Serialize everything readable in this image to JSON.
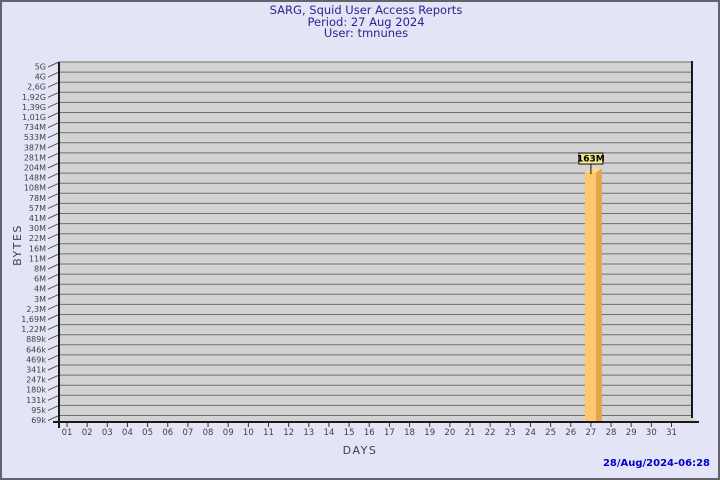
{
  "header": {
    "title": "SARG, Squid User Access Reports",
    "period": "Period: 27 Aug 2024",
    "user": "User: tmnunes"
  },
  "footer": {
    "timestamp": "28/Aug/2024-06:28"
  },
  "axis_labels": {
    "y": "BYTES",
    "x": "DAYS"
  },
  "colors": {
    "background": "#e4e4f7",
    "frame_border": "#63636d",
    "title": "#26268f",
    "timestamp": "#0000cd",
    "axis_text": "#3f3f3f",
    "tick_text": "#424242",
    "wall": "#d3d3d3",
    "gridline": "#6f6f6f",
    "axis": "#1a1a1a",
    "bar_front": "#ffc870",
    "bar_side": "#e1a74d",
    "bar_top": "#ffd58a",
    "value_box": "#f0e68c"
  },
  "chart_data": {
    "type": "bar",
    "title": "SARG, Squid User Access Reports",
    "subtitle": [
      "Period: 27 Aug 2024",
      "User: tmnunes"
    ],
    "xlabel": "DAYS",
    "ylabel": "BYTES",
    "y_scale": "log",
    "legend": "none",
    "grid": true,
    "x_categories": [
      "01",
      "02",
      "03",
      "04",
      "05",
      "06",
      "07",
      "08",
      "09",
      "10",
      "11",
      "12",
      "13",
      "14",
      "15",
      "16",
      "17",
      "18",
      "19",
      "20",
      "21",
      "22",
      "23",
      "24",
      "25",
      "26",
      "27",
      "28",
      "29",
      "30",
      "31"
    ],
    "values": [
      0,
      0,
      0,
      0,
      0,
      0,
      0,
      0,
      0,
      0,
      0,
      0,
      0,
      0,
      0,
      0,
      0,
      0,
      0,
      0,
      0,
      0,
      0,
      0,
      0,
      0,
      163000000,
      0,
      0,
      0,
      0
    ],
    "bars": [
      {
        "day": "27",
        "label": "163M",
        "bytes": 163000000
      }
    ],
    "y_tick_labels": [
      "5G",
      "4G",
      "2,6G",
      "1,92G",
      "1,39G",
      "1,01G",
      "734M",
      "533M",
      "387M",
      "281M",
      "204M",
      "148M",
      "108M",
      "78M",
      "57M",
      "41M",
      "30M",
      "22M",
      "16M",
      "11M",
      "8M",
      "6M",
      "4M",
      "3M",
      "2,3M",
      "1,69M",
      "1,22M",
      "889k",
      "646k",
      "469k",
      "341k",
      "247k",
      "180k",
      "131k",
      "95k",
      "69k"
    ],
    "y_tick_bytes": [
      5000000000,
      4000000000,
      2600000000,
      1920000000,
      1390000000,
      1010000000,
      734000000,
      533000000,
      387000000,
      281000000,
      204000000,
      148000000,
      108000000,
      78000000,
      57000000,
      41000000,
      30000000,
      22000000,
      16000000,
      11000000,
      8000000,
      6000000,
      4000000,
      3000000,
      2300000,
      1690000,
      1220000,
      889000,
      646000,
      469000,
      341000,
      247000,
      180000,
      131000,
      95000,
      69000
    ]
  }
}
